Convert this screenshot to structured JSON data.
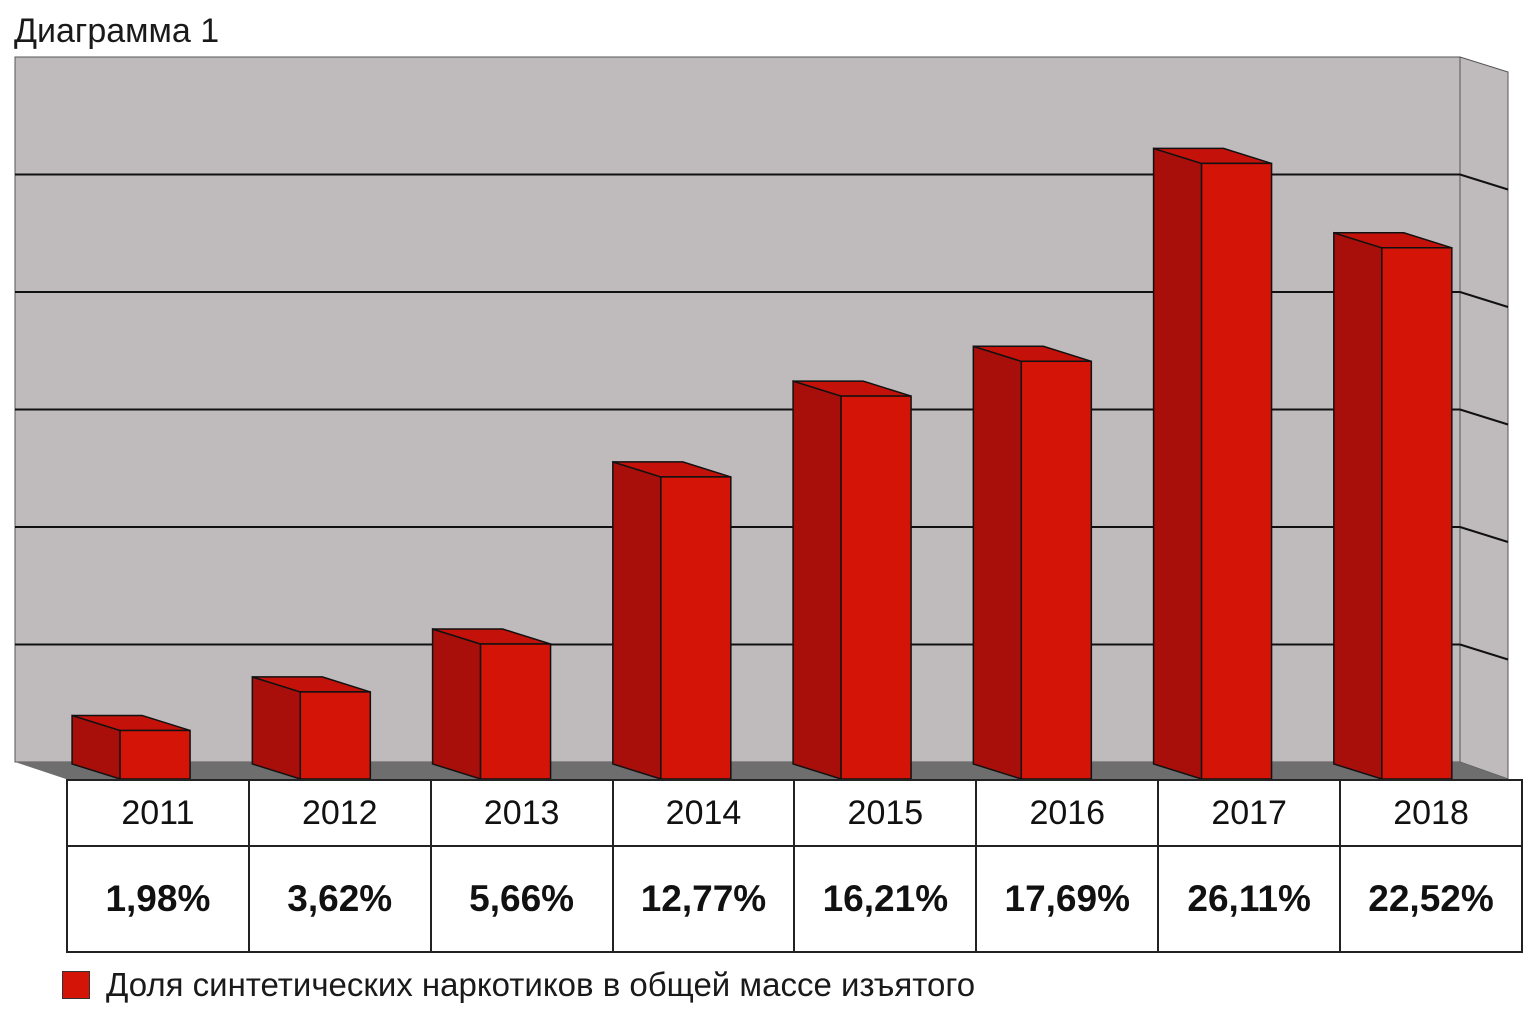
{
  "chart_data": {
    "type": "bar",
    "title": "Диаграмма 1",
    "categories": [
      "2011",
      "2012",
      "2013",
      "2014",
      "2015",
      "2016",
      "2017",
      "2018"
    ],
    "series": [
      {
        "name": "Доля синтетических наркотиков в общей массе изъятого",
        "values": [
          1.98,
          3.62,
          5.66,
          12.77,
          16.21,
          17.69,
          26.11,
          22.52
        ],
        "labels": [
          "1,98%",
          "3,62%",
          "5,66%",
          "12,77%",
          "16,21%",
          "17,69%",
          "26,11%",
          "22,52%"
        ]
      }
    ],
    "ylim": [
      0,
      30
    ],
    "grid": true,
    "style": "3d",
    "legend_position": "bottom",
    "colors": {
      "bar_front": "#d51408",
      "bar_side": "#a80e0a",
      "bar_top": "#c4120a",
      "wall": "#bfbbbc",
      "floor": "#6e6e6e",
      "grid": "#111111"
    }
  }
}
